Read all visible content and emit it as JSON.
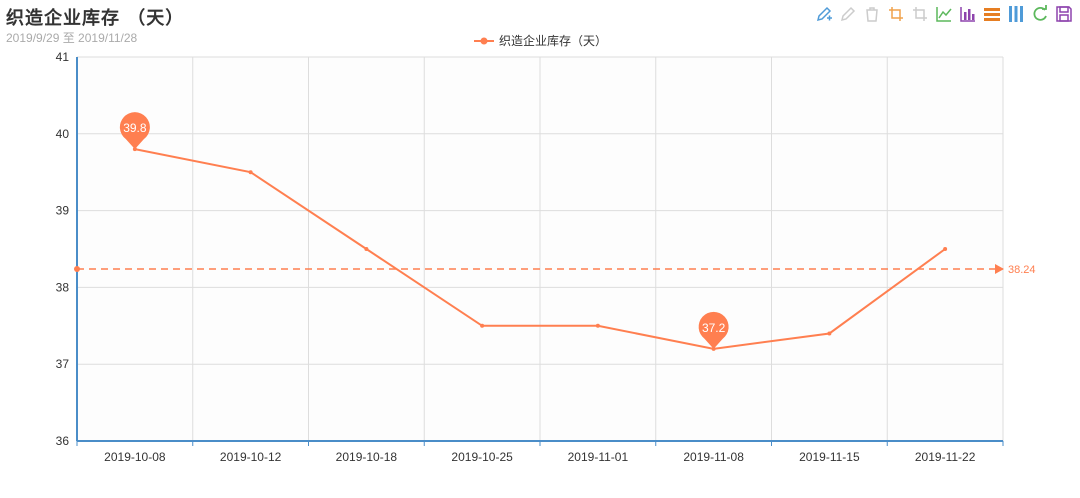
{
  "header": {
    "title": "织造企业库存 （天）",
    "subtitle": "2019/9/29 至 2019/11/28"
  },
  "toolbox": [
    {
      "name": "mark-pen-icon",
      "color": "#4f9bd8"
    },
    {
      "name": "mark-undo-icon",
      "color": "#cccccc"
    },
    {
      "name": "mark-clear-icon",
      "color": "#cccccc"
    },
    {
      "name": "data-zoom-icon",
      "color": "#f0a24b"
    },
    {
      "name": "data-zoom-reset-icon",
      "color": "#cccccc"
    },
    {
      "name": "line-chart-icon",
      "color": "#5cb85c"
    },
    {
      "name": "bar-chart-icon",
      "color": "#8e44ad"
    },
    {
      "name": "stack-icon",
      "color": "#e67e22"
    },
    {
      "name": "tiled-icon",
      "color": "#4f9bd8"
    },
    {
      "name": "restore-icon",
      "color": "#5cb85c"
    },
    {
      "name": "save-image-icon",
      "color": "#8e44ad"
    }
  ],
  "chart_data": {
    "type": "line",
    "title": "织造企业库存 （天）",
    "subtitle": "2019/9/29 至 2019/11/28",
    "categories": [
      "2019-10-08",
      "2019-10-12",
      "2019-10-18",
      "2019-10-25",
      "2019-11-01",
      "2019-11-08",
      "2019-11-15",
      "2019-11-22"
    ],
    "series": [
      {
        "name": "织造企业库存（天）",
        "color": "#ff7f50",
        "points": [
          {
            "x": "2019-10-08",
            "y": 39.8
          },
          {
            "x": "2019-10-12",
            "y": 39.5
          },
          {
            "x": "2019-10-18",
            "y": 38.5
          },
          {
            "x": "2019-10-25",
            "y": 37.5
          },
          {
            "x": "2019-11-01",
            "y": 37.5
          },
          {
            "x": "2019-11-08",
            "y": 37.2
          },
          {
            "x": "2019-11-15",
            "y": 37.4
          },
          {
            "x": "2019-11-22",
            "y": 38.5
          }
        ]
      }
    ],
    "mark_points": [
      {
        "label": "39.8",
        "x": "2019-10-08",
        "y": 39.8
      },
      {
        "label": "37.2",
        "x": "2019-11-08",
        "y": 37.2
      }
    ],
    "mark_line": {
      "label": "38.24",
      "value": 38.24
    },
    "ylim": [
      36,
      41
    ],
    "yticks": [
      "36",
      "37",
      "38",
      "39",
      "40",
      "41"
    ],
    "grid": true,
    "legend_position": "top-center"
  }
}
